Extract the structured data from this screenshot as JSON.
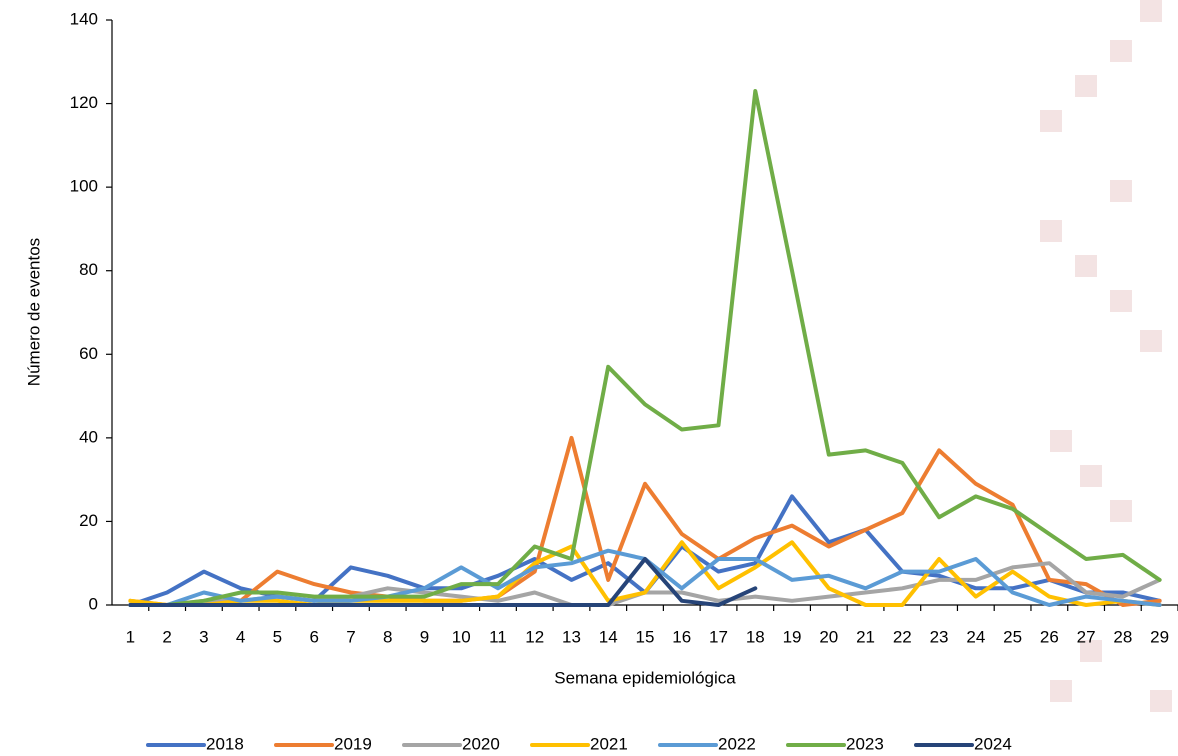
{
  "chart_data": {
    "type": "line",
    "y_label": "Número de eventos",
    "x_label": "Semana epidemiológica",
    "categories": [
      "1",
      "2",
      "3",
      "4",
      "5",
      "6",
      "7",
      "8",
      "9",
      "10",
      "11",
      "12",
      "13",
      "14",
      "15",
      "16",
      "17",
      "18",
      "19",
      "20",
      "21",
      "22",
      "23",
      "24",
      "25",
      "26",
      "27",
      "28",
      "29"
    ],
    "ylim": [
      0,
      140
    ],
    "yticks": [
      0,
      20,
      40,
      60,
      80,
      100,
      120,
      140
    ],
    "series": [
      {
        "name": "2018",
        "color": "#4472c4",
        "values": [
          0,
          3,
          8,
          4,
          2,
          1,
          9,
          7,
          4,
          4,
          7,
          11,
          6,
          10,
          3,
          14,
          8,
          10,
          26,
          15,
          18,
          8,
          7,
          4,
          4,
          6,
          3,
          3,
          1
        ]
      },
      {
        "name": "2019",
        "color": "#ed7d31",
        "values": [
          1,
          0,
          0,
          1,
          8,
          5,
          3,
          2,
          1,
          1,
          2,
          8,
          40,
          6,
          29,
          17,
          11,
          16,
          19,
          14,
          18,
          22,
          37,
          29,
          24,
          6,
          5,
          0,
          1
        ]
      },
      {
        "name": "2020",
        "color": "#a5a5a5",
        "values": [
          0,
          0,
          1,
          1,
          2,
          1,
          2,
          4,
          3,
          2,
          1,
          3,
          0,
          0,
          3,
          3,
          1,
          2,
          1,
          2,
          3,
          4,
          6,
          6,
          9,
          10,
          3,
          2,
          6
        ]
      },
      {
        "name": "2021",
        "color": "#ffc000",
        "values": [
          1,
          0,
          0,
          1,
          1,
          0,
          1,
          1,
          1,
          1,
          2,
          10,
          14,
          1,
          3,
          15,
          4,
          9,
          15,
          4,
          0,
          0,
          11,
          2,
          8,
          2,
          0,
          1,
          0
        ]
      },
      {
        "name": "2022",
        "color": "#5b9bd5",
        "values": [
          0,
          0,
          3,
          1,
          2,
          1,
          1,
          2,
          4,
          9,
          4,
          9,
          10,
          13,
          11,
          4,
          11,
          11,
          6,
          7,
          4,
          8,
          8,
          11,
          3,
          0,
          2,
          1,
          0
        ]
      },
      {
        "name": "2023",
        "color": "#70ad47",
        "values": [
          0,
          0,
          1,
          3,
          3,
          2,
          2,
          2,
          2,
          5,
          5,
          14,
          11,
          57,
          48,
          42,
          43,
          123,
          80,
          36,
          37,
          34,
          21,
          26,
          23,
          17,
          11,
          12,
          6
        ]
      },
      {
        "name": "2024",
        "color": "#264478",
        "values": [
          0,
          0,
          0,
          0,
          0,
          0,
          0,
          0,
          0,
          0,
          0,
          0,
          0,
          0,
          11,
          1,
          0,
          4,
          null,
          null,
          null,
          null,
          null,
          null,
          null,
          null,
          null,
          null,
          null
        ]
      }
    ]
  }
}
